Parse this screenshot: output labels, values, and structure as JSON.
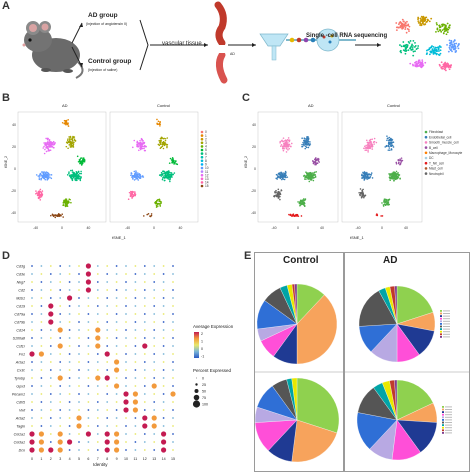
{
  "panels": {
    "a": "A",
    "b": "B",
    "c": "C",
    "d": "D",
    "e": "E"
  },
  "panel_a": {
    "ad_group": "AD group",
    "ad_group_sub": "(Injection of angiotensin II)",
    "control_group": "Control group",
    "control_group_sub": "(Injection of saline)",
    "vascular_tissue": "vascular tissue",
    "ad_tag": "AD",
    "sequencing": "Single -cell RNA sequencing"
  },
  "panel_b": {
    "title_ad": "AD",
    "title_control": "Control",
    "xlabel": "tSNE_1",
    "ylabel": "tSNE_2",
    "xticks": [
      "-40",
      "0",
      "40"
    ],
    "xticks2": [
      "-40",
      "0",
      "40"
    ],
    "yticks": [
      "40",
      "20",
      "0",
      "-20",
      "-40"
    ],
    "legend": [
      "0",
      "1",
      "2",
      "3",
      "4",
      "5",
      "6",
      "7",
      "8",
      "9",
      "10",
      "11",
      "12",
      "13",
      "14",
      "15"
    ],
    "colors": [
      "#f8766d",
      "#e58700",
      "#c99800",
      "#a3a500",
      "#6bb100",
      "#00ba38",
      "#00bf7d",
      "#00c0af",
      "#00bcd8",
      "#00b0f6",
      "#619cff",
      "#b983ff",
      "#e76bf3",
      "#fd61d1",
      "#ff67a4",
      "#8b4513"
    ]
  },
  "panel_c": {
    "title_ad": "AD",
    "title_control": "Control",
    "xlabel": "tSNE_1",
    "ylabel": "tSNE_2",
    "xticks": [
      "-40",
      "0",
      "40"
    ],
    "xticks2": [
      "-40",
      "0",
      "40"
    ],
    "yticks": [
      "40",
      "20",
      "0",
      "-20",
      "-40"
    ],
    "legend": [
      "Fibroblast",
      "Endothelial_cell",
      "Smooth_muscle_cell",
      "B_cell",
      "Macrophage_Monocyte",
      "DC",
      "T_NK_cell",
      "Mast_cell",
      "Neutrophil"
    ],
    "colors": [
      "#4daf4a",
      "#377eb8",
      "#f781bf",
      "#984ea3",
      "#ff7f00",
      "#a6cee3",
      "#e41a1c",
      "#b15928",
      "#666666"
    ]
  },
  "panel_d": {
    "genes": [
      "Cd3g",
      "Cd3e",
      "Nkg7",
      "Cd2",
      "Mzb1",
      "Cd19",
      "Cd79a",
      "Cd79b",
      "Cd14",
      "S100a8",
      "Csf1r",
      "Fn1",
      "Acta1",
      "Cx3c",
      "Tyrobp",
      "Gpx3",
      "Pecam1",
      "Cdh5",
      "Vwf",
      "Acta2",
      "Tagln",
      "Col1a1",
      "Col3a1",
      "Dcn"
    ],
    "identity_ticks": [
      "0",
      "1",
      "2",
      "3",
      "4",
      "5",
      "6",
      "7",
      "8",
      "9",
      "10",
      "11",
      "12",
      "13",
      "14",
      "15"
    ],
    "xlabel": "Identity",
    "legend_expr_title": "Average Expression",
    "legend_expr_ticks": [
      "2",
      "1",
      "0",
      "-1"
    ],
    "legend_pct_title": "Percent Expressed",
    "legend_pct_values": [
      "0",
      "25",
      "50",
      "75",
      "100"
    ]
  },
  "panel_e": {
    "title_control": "Control",
    "title_ad": "AD",
    "pie_colors": [
      "#8fd14f",
      "#f7a35c",
      "#1f3a93",
      "#ff4fd8",
      "#b8a9e3",
      "#2f6fd6",
      "#555555",
      "#00a4a6",
      "#e8e800",
      "#c0392b",
      "#7f3c8d",
      "#222222"
    ],
    "pies": [
      {
        "name": "control-top",
        "values": [
          12,
          38,
          10,
          8,
          5,
          12,
          8,
          3,
          2,
          1,
          1
        ]
      },
      {
        "name": "ad-top",
        "values": [
          20,
          8,
          12,
          10,
          12,
          12,
          18,
          3,
          2,
          2,
          1
        ]
      },
      {
        "name": "control-bottom",
        "values": [
          30,
          22,
          10,
          12,
          6,
          10,
          6,
          2,
          2
        ]
      },
      {
        "name": "ad-bottom",
        "values": [
          18,
          8,
          14,
          12,
          10,
          16,
          12,
          4,
          3,
          2,
          1
        ]
      }
    ]
  }
}
